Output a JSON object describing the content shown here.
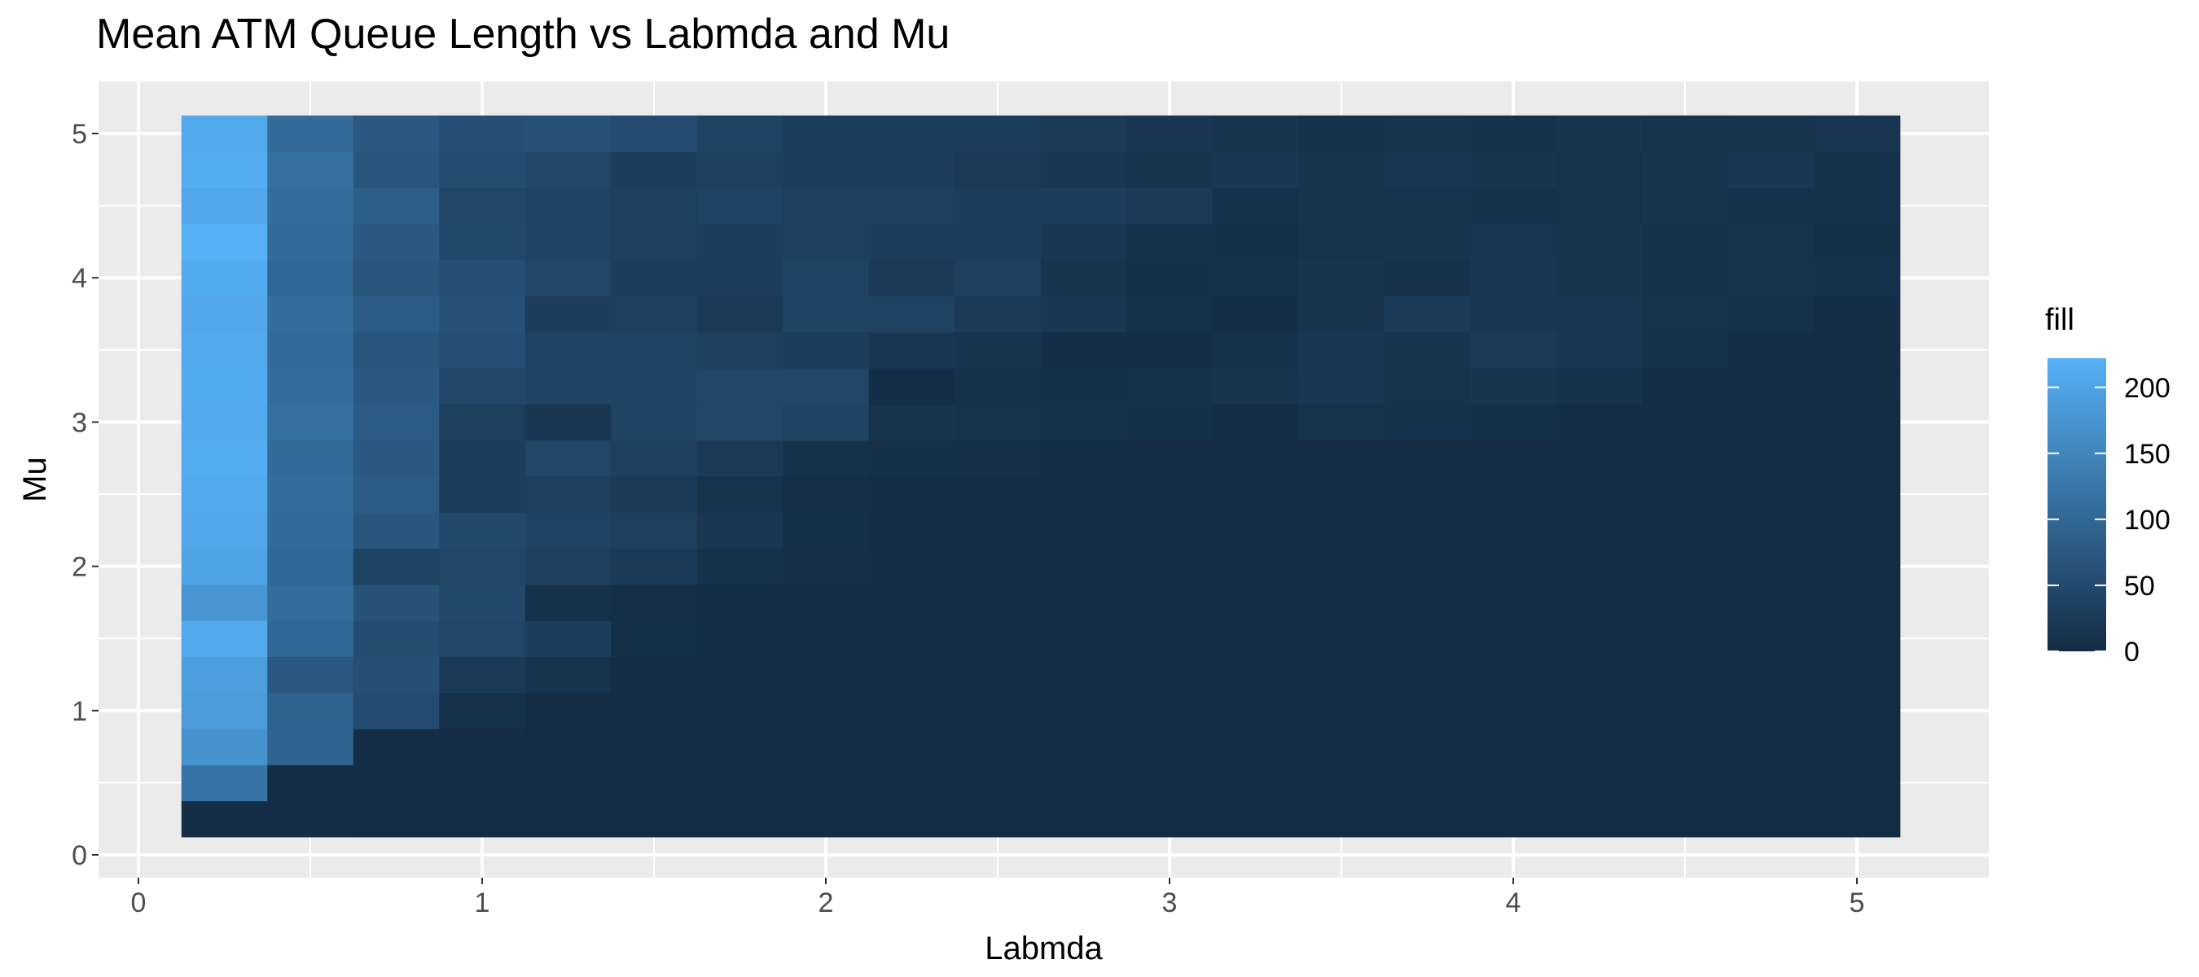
{
  "chart_data": {
    "type": "heatmap",
    "title": "Mean ATM Queue Length vs Labmda and Mu",
    "xlabel": "Labmda",
    "ylabel": "Mu",
    "x_ticks": [
      "0",
      "1",
      "2",
      "3",
      "4",
      "5"
    ],
    "y_ticks": [
      "0",
      "1",
      "2",
      "3",
      "4",
      "5"
    ],
    "xlim": [
      0,
      5
    ],
    "ylim": [
      0,
      5
    ],
    "x": [
      0.25,
      0.5,
      0.75,
      1.0,
      1.25,
      1.5,
      1.75,
      2.0,
      2.25,
      2.5,
      2.75,
      3.0,
      3.25,
      3.5,
      3.75,
      4.0,
      4.25,
      4.5,
      4.75,
      5.0
    ],
    "y": [
      0.25,
      0.5,
      0.75,
      1.0,
      1.25,
      1.5,
      1.75,
      2.0,
      2.25,
      2.5,
      2.75,
      3.0,
      3.25,
      3.5,
      3.75,
      4.0,
      4.25,
      4.5,
      4.75,
      5.0
    ],
    "z": [
      [
        5,
        2,
        1,
        1,
        1,
        0,
        0,
        0,
        0,
        0,
        0,
        0,
        0,
        0,
        0,
        0,
        0,
        0,
        0,
        0
      ],
      [
        120,
        4,
        2,
        1,
        1,
        1,
        0,
        0,
        0,
        0,
        0,
        0,
        0,
        0,
        0,
        0,
        0,
        0,
        0,
        0
      ],
      [
        170,
        95,
        3,
        2,
        1,
        1,
        1,
        0,
        0,
        0,
        0,
        0,
        0,
        0,
        0,
        0,
        0,
        0,
        0,
        0
      ],
      [
        185,
        90,
        55,
        10,
        3,
        2,
        1,
        1,
        0,
        0,
        0,
        0,
        0,
        0,
        0,
        0,
        0,
        0,
        0,
        0
      ],
      [
        190,
        75,
        60,
        25,
        12,
        3,
        2,
        1,
        1,
        0,
        0,
        0,
        0,
        0,
        0,
        0,
        0,
        0,
        0,
        0
      ],
      [
        210,
        100,
        55,
        45,
        30,
        8,
        4,
        2,
        1,
        1,
        0,
        0,
        0,
        0,
        0,
        0,
        0,
        0,
        0,
        0
      ],
      [
        175,
        110,
        65,
        50,
        10,
        6,
        5,
        3,
        2,
        1,
        1,
        0,
        0,
        0,
        0,
        0,
        0,
        0,
        0,
        0
      ],
      [
        200,
        100,
        40,
        45,
        35,
        25,
        10,
        6,
        3,
        2,
        1,
        1,
        1,
        0,
        0,
        0,
        0,
        0,
        0,
        0
      ],
      [
        205,
        105,
        70,
        50,
        40,
        35,
        20,
        8,
        5,
        3,
        2,
        1,
        1,
        1,
        0,
        0,
        0,
        0,
        0,
        0
      ],
      [
        210,
        110,
        80,
        30,
        35,
        25,
        12,
        6,
        4,
        3,
        2,
        2,
        1,
        1,
        1,
        0,
        0,
        0,
        0,
        0
      ],
      [
        215,
        105,
        75,
        30,
        45,
        35,
        25,
        10,
        8,
        6,
        4,
        3,
        2,
        2,
        1,
        1,
        0,
        0,
        0,
        0
      ],
      [
        210,
        115,
        80,
        35,
        20,
        40,
        45,
        40,
        15,
        12,
        10,
        8,
        5,
        12,
        10,
        8,
        4,
        2,
        1,
        1
      ],
      [
        212,
        110,
        75,
        45,
        40,
        40,
        45,
        45,
        5,
        10,
        8,
        10,
        15,
        20,
        12,
        15,
        10,
        4,
        3,
        2
      ],
      [
        210,
        105,
        70,
        60,
        40,
        40,
        35,
        30,
        20,
        15,
        5,
        5,
        10,
        20,
        15,
        25,
        20,
        10,
        5,
        4
      ],
      [
        205,
        110,
        80,
        65,
        30,
        35,
        25,
        40,
        40,
        25,
        20,
        10,
        5,
        15,
        25,
        20,
        18,
        12,
        10,
        5
      ],
      [
        212,
        100,
        70,
        60,
        45,
        30,
        30,
        40,
        25,
        35,
        15,
        8,
        10,
        15,
        10,
        20,
        15,
        10,
        12,
        10
      ],
      [
        220,
        105,
        75,
        50,
        40,
        35,
        30,
        35,
        30,
        30,
        20,
        10,
        8,
        12,
        15,
        18,
        15,
        10,
        12,
        8
      ],
      [
        205,
        110,
        85,
        45,
        40,
        35,
        40,
        35,
        35,
        30,
        30,
        25,
        10,
        15,
        12,
        10,
        12,
        15,
        10,
        10
      ],
      [
        215,
        115,
        70,
        55,
        45,
        30,
        35,
        30,
        30,
        25,
        20,
        15,
        20,
        15,
        18,
        15,
        12,
        15,
        20,
        10
      ],
      [
        210,
        105,
        75,
        60,
        65,
        55,
        40,
        30,
        30,
        30,
        25,
        20,
        15,
        10,
        12,
        10,
        15,
        12,
        15,
        18
      ]
    ],
    "legend": {
      "title": "fill",
      "labels": [
        "200",
        "150",
        "100",
        "50",
        "0"
      ],
      "values": [
        200,
        150,
        100,
        50,
        0
      ],
      "min": 0,
      "max": 222,
      "low_color": "#132B43",
      "high_color": "#56B1F7"
    },
    "panel_background": "#EBEBEB",
    "grid": true,
    "legend_position": "right"
  }
}
